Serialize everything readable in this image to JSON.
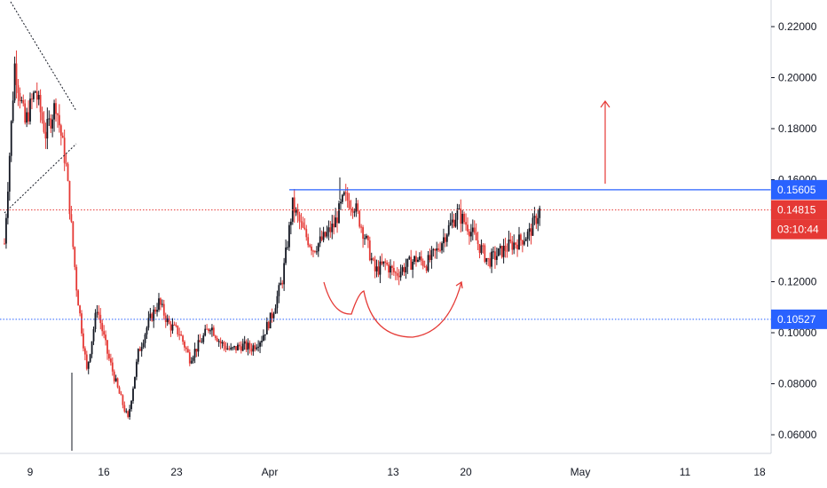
{
  "chart_data": {
    "type": "candlestick",
    "title": "",
    "xlabel": "",
    "ylabel": "",
    "ylim": [
      0.0525,
      0.2335
    ],
    "price_axis": {
      "position": "right",
      "ticks": [
        "0.06000",
        "0.08000",
        "0.10000",
        "0.12000",
        "0.14000",
        "0.16000",
        "0.18000",
        "0.20000",
        "0.22000"
      ]
    },
    "time_axis": {
      "ticks": [
        "9",
        "16",
        "23",
        "Apr",
        "13",
        "20",
        "May",
        "11",
        "18"
      ],
      "start": "Mar 5",
      "end": "May 21"
    },
    "grid": false,
    "colors": {
      "up": "#131722",
      "down": "#e53935",
      "resistance": "#2962ff",
      "last_price": "#e53935",
      "support": "#2962ff",
      "annotation": "#e53935"
    },
    "key_levels": [
      {
        "value": 0.15605,
        "label": "0.15605",
        "style": "solid",
        "color": "#2962ff"
      },
      {
        "value": 0.14815,
        "label": "0.14815",
        "style": "dotted",
        "color": "#e53935"
      },
      {
        "value": 0.10527,
        "label": "0.10527",
        "style": "dotted",
        "color": "#2962ff"
      }
    ],
    "countdown": "03:10:44",
    "annotations": [
      "descending trendlines",
      "cup-and-handle curve",
      "upward breakout arrow"
    ],
    "path_points": [
      [
        "Mar 5",
        0.135
      ],
      [
        "Mar 6",
        0.205
      ],
      [
        "Mar 7",
        0.182
      ],
      [
        "Mar 8",
        0.195
      ],
      [
        "Mar 9",
        0.178
      ],
      [
        "Mar 10",
        0.19
      ],
      [
        "Mar 11",
        0.165
      ],
      [
        "Mar 12",
        0.118
      ],
      [
        "Mar 13",
        0.085
      ],
      [
        "Mar 14",
        0.11
      ],
      [
        "Mar 15",
        0.092
      ],
      [
        "Mar 16",
        0.078
      ],
      [
        "Mar 17",
        0.066
      ],
      [
        "Mar 18",
        0.092
      ],
      [
        "Mar 19",
        0.104
      ],
      [
        "Mar 20",
        0.112
      ],
      [
        "Mar 21",
        0.103
      ],
      [
        "Mar 22",
        0.1
      ],
      [
        "Mar 23",
        0.09
      ],
      [
        "Mar 24",
        0.096
      ],
      [
        "Mar 25",
        0.103
      ],
      [
        "Mar 26",
        0.096
      ],
      [
        "Mar 27",
        0.093
      ],
      [
        "Mar 28",
        0.095
      ],
      [
        "Mar 29",
        0.094
      ],
      [
        "Mar 30",
        0.098
      ],
      [
        "Mar 31",
        0.107
      ],
      [
        "Apr 1",
        0.121
      ],
      [
        "Apr 2",
        0.15
      ],
      [
        "Apr 3",
        0.14
      ],
      [
        "Apr 4",
        0.133
      ],
      [
        "Apr 5",
        0.137
      ],
      [
        "Apr 6",
        0.142
      ],
      [
        "Apr 7",
        0.153
      ],
      [
        "Apr 8",
        0.15
      ],
      [
        "Apr 9",
        0.138
      ],
      [
        "Apr 10",
        0.124
      ],
      [
        "Apr 11",
        0.127
      ],
      [
        "Apr 12",
        0.123
      ],
      [
        "Apr 13",
        0.126
      ],
      [
        "Apr 14",
        0.129
      ],
      [
        "Apr 15",
        0.127
      ],
      [
        "Apr 16",
        0.132
      ],
      [
        "Apr 17",
        0.14
      ],
      [
        "Apr 18",
        0.147
      ],
      [
        "Apr 19",
        0.142
      ],
      [
        "Apr 20",
        0.135
      ],
      [
        "Apr 21",
        0.128
      ],
      [
        "Apr 22",
        0.131
      ],
      [
        "Apr 23",
        0.134
      ],
      [
        "Apr 24",
        0.136
      ],
      [
        "Apr 25",
        0.139
      ],
      [
        "Apr 26",
        0.148
      ]
    ]
  }
}
